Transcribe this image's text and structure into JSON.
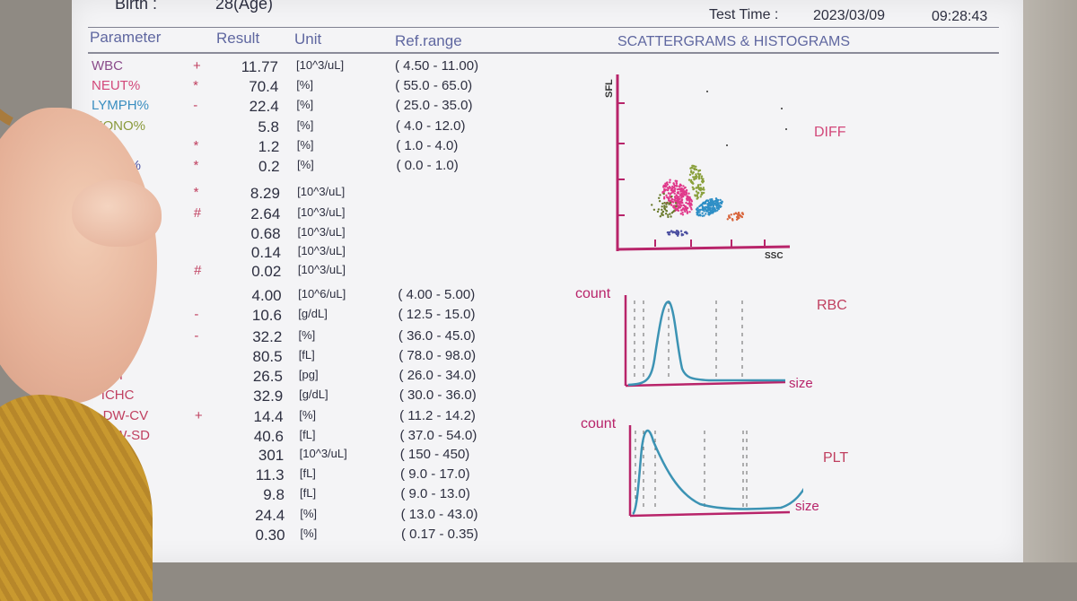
{
  "header": {
    "birth_label": "Birth :",
    "age": "28(Age)",
    "test_time_label": "Test Time :",
    "date": "2023/03/09",
    "time": "09:28:43"
  },
  "columns": {
    "parameter": "Parameter",
    "result": "Result",
    "unit": "Unit",
    "ref": "Ref.range",
    "graphs": "SCATTERGRAMS & HISTOGRAMS"
  },
  "rows": [
    {
      "name": "WBC",
      "flag": "+",
      "result": "11.77",
      "unit": "[10^3/uL]",
      "ref": "( 4.50 - 11.00)",
      "color": "#8a4c8a"
    },
    {
      "name": "NEUT%",
      "flag": "*",
      "result": "70.4",
      "unit": "[%]",
      "ref": "( 55.0 - 65.0)",
      "color": "#d2487a"
    },
    {
      "name": "LYMPH%",
      "flag": "-",
      "result": "22.4",
      "unit": "[%]",
      "ref": "( 25.0 - 35.0)",
      "color": "#3a8ec0"
    },
    {
      "name": "MONO%",
      "flag": "",
      "result": "5.8",
      "unit": "[%]",
      "ref": "( 4.0 - 12.0)",
      "color": "#8a9a3c"
    },
    {
      "name": "EO%",
      "flag": "*",
      "result": "1.2",
      "unit": "[%]",
      "ref": "( 1.0 - 4.0)",
      "color": "#d24848"
    },
    {
      "name": "BASO%",
      "flag": "*",
      "result": "0.2",
      "unit": "[%]",
      "ref": "( 0.0 - 1.0)",
      "color": "#4a4ea0"
    },
    {
      "name": "",
      "flag": "*",
      "result": "8.29",
      "unit": "[10^3/uL]",
      "ref": "",
      "color": "#d2487a"
    },
    {
      "name": "",
      "flag": "#",
      "result": "2.64",
      "unit": "[10^3/uL]",
      "ref": "",
      "color": "#3a8ec0"
    },
    {
      "name": "",
      "flag": "",
      "result": "0.68",
      "unit": "[10^3/uL]",
      "ref": "",
      "color": "#8a9a3c"
    },
    {
      "name": "",
      "flag": "",
      "result": "0.14",
      "unit": "[10^3/uL]",
      "ref": "",
      "color": "#d24848"
    },
    {
      "name": "",
      "flag": "#",
      "result": "0.02",
      "unit": "[10^3/uL]",
      "ref": "",
      "color": "#4a4ea0"
    },
    {
      "name": "",
      "flag": "",
      "result": "4.00",
      "unit": "[10^6/uL]",
      "ref": "( 4.00 - 5.00)",
      "color": "#c04060"
    },
    {
      "name": "B",
      "flag": "-",
      "result": "10.6",
      "unit": "[g/dL]",
      "ref": "( 12.5 - 15.0)",
      "color": "#c04060"
    },
    {
      "name": "T",
      "flag": "-",
      "result": "32.2",
      "unit": "[%]",
      "ref": "( 36.0 - 45.0)",
      "color": "#c04060"
    },
    {
      "name": "CV",
      "flag": "",
      "result": "80.5",
      "unit": "[fL]",
      "ref": "( 78.0 - 98.0)",
      "color": "#c04060"
    },
    {
      "name": "ICH",
      "flag": "",
      "result": "26.5",
      "unit": "[pg]",
      "ref": "( 26.0 - 34.0)",
      "color": "#c04060"
    },
    {
      "name": "ICHC",
      "flag": "",
      "result": "32.9",
      "unit": "[g/dL]",
      "ref": "( 30.0 - 36.0)",
      "color": "#c04060"
    },
    {
      "name": "DW-CV",
      "flag": "+",
      "result": "14.4",
      "unit": "[%]",
      "ref": "( 11.2 - 14.2)",
      "color": "#c04060"
    },
    {
      "name": "DW-SD",
      "flag": "",
      "result": "40.6",
      "unit": "[fL]",
      "ref": "( 37.0 - 54.0)",
      "color": "#c04060"
    },
    {
      "name": "",
      "flag": "",
      "result": "301",
      "unit": "[10^3/uL]",
      "ref": "( 150 - 450)",
      "color": "#c04060"
    },
    {
      "name": "",
      "flag": "",
      "result": "11.3",
      "unit": "[fL]",
      "ref": "( 9.0 - 17.0)",
      "color": "#c04060"
    },
    {
      "name": "",
      "flag": "",
      "result": "9.8",
      "unit": "[fL]",
      "ref": "( 9.0 - 13.0)",
      "color": "#c04060"
    },
    {
      "name": "",
      "flag": "",
      "result": "24.4",
      "unit": "[%]",
      "ref": "( 13.0 - 43.0)",
      "color": "#c04060"
    },
    {
      "name": "",
      "flag": "",
      "result": "0.30",
      "unit": "[%]",
      "ref": "( 0.17 - 0.35)",
      "color": "#c04060"
    }
  ],
  "charts": {
    "diff": {
      "title": "DIFF",
      "y_label": "SFL",
      "x_label": "SSC",
      "title_color": "#d2487a"
    },
    "rbc": {
      "title": "RBC",
      "y_label": "count",
      "x_label": "size",
      "title_color": "#c04060"
    },
    "plt": {
      "title": "PLT",
      "y_label": "count",
      "x_label": "size",
      "title_color": "#c04060"
    }
  },
  "accent_colors": {
    "curve": "#3c93b4",
    "axis": "#b8246a",
    "cluster_neut": "#e0388a",
    "cluster_lymph": "#2f8fc6",
    "cluster_mono": "#8aa03c",
    "cluster_eo": "#d8653c"
  }
}
